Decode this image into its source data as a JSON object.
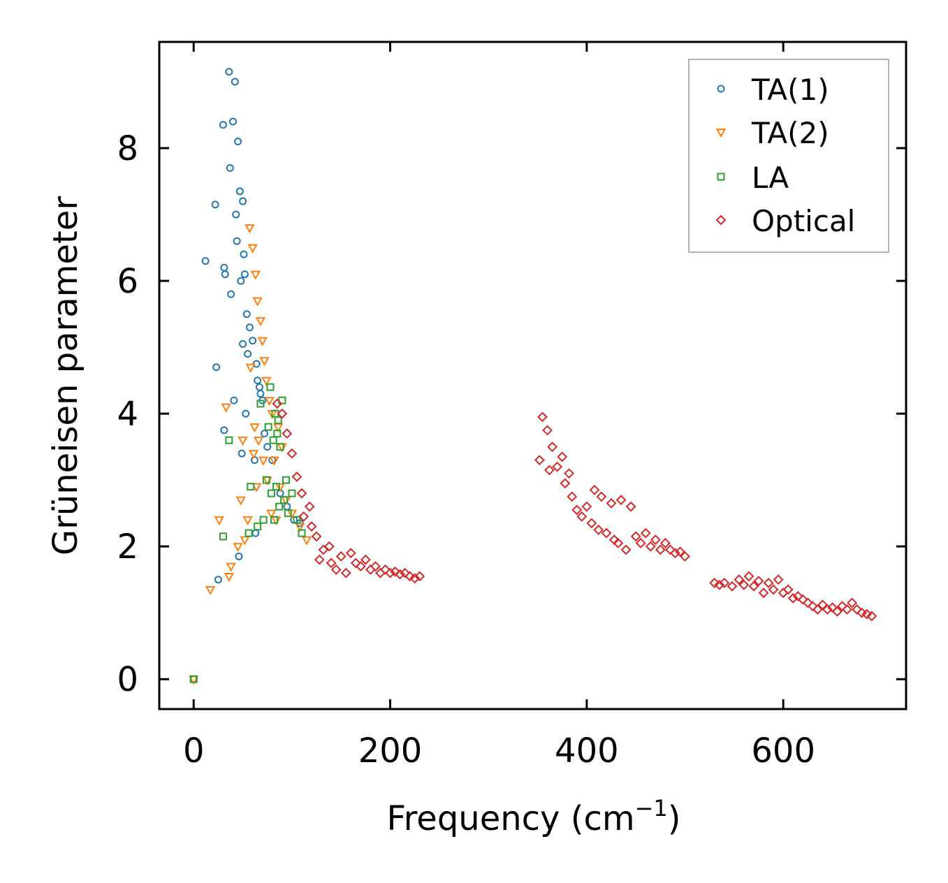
{
  "chart_data": {
    "type": "scatter",
    "title": "",
    "xlabel": "Frequency (cm",
    "xlabel_superscript": "−1",
    "xlabel_close": ")",
    "ylabel": "Grüneisen parameter",
    "xlim": [
      -35,
      725
    ],
    "ylim": [
      -0.45,
      9.6
    ],
    "xticks": [
      0,
      200,
      400,
      600
    ],
    "yticks": [
      0,
      2,
      4,
      6,
      8
    ],
    "xtick_labels": [
      "0",
      "200",
      "400",
      "600"
    ],
    "ytick_labels": [
      "0",
      "2",
      "4",
      "6",
      "8"
    ],
    "grid": false,
    "legend_position": "top-right",
    "series": [
      {
        "name": "TA(1)",
        "marker": "circle",
        "color": "#1f77b4",
        "points": [
          [
            0,
            0
          ],
          [
            12,
            6.3
          ],
          [
            22,
            7.15
          ],
          [
            23,
            4.7
          ],
          [
            25,
            1.5
          ],
          [
            30,
            8.35
          ],
          [
            31,
            6.2
          ],
          [
            31,
            3.75
          ],
          [
            32,
            6.1
          ],
          [
            36,
            9.15
          ],
          [
            37,
            7.7
          ],
          [
            38,
            5.8
          ],
          [
            40,
            8.4
          ],
          [
            41,
            4.2
          ],
          [
            42,
            9.0
          ],
          [
            43,
            7.0
          ],
          [
            44,
            6.6
          ],
          [
            45,
            8.1
          ],
          [
            46,
            1.85
          ],
          [
            47,
            7.35
          ],
          [
            48,
            6.0
          ],
          [
            49,
            3.4
          ],
          [
            50,
            5.05
          ],
          [
            50,
            7.2
          ],
          [
            51,
            6.4
          ],
          [
            52,
            6.1
          ],
          [
            53,
            4.0
          ],
          [
            54,
            5.5
          ],
          [
            55,
            4.9
          ],
          [
            57,
            5.3
          ],
          [
            60,
            5.1
          ],
          [
            62,
            3.3
          ],
          [
            63,
            2.2
          ],
          [
            64,
            4.75
          ],
          [
            65,
            4.5
          ],
          [
            67,
            4.4
          ],
          [
            68,
            4.3
          ],
          [
            70,
            4.2
          ],
          [
            72,
            3.7
          ],
          [
            75,
            3.5
          ],
          [
            80,
            3.3
          ],
          [
            88,
            2.8
          ],
          [
            95,
            2.6
          ],
          [
            102,
            2.4
          ],
          [
            108,
            2.35
          ]
        ]
      },
      {
        "name": "TA(2)",
        "marker": "triangle-down",
        "color": "#ff7f0e",
        "points": [
          [
            0,
            0
          ],
          [
            17,
            1.35
          ],
          [
            26,
            2.4
          ],
          [
            33,
            4.1
          ],
          [
            36,
            1.55
          ],
          [
            38,
            1.7
          ],
          [
            45,
            2.0
          ],
          [
            48,
            2.7
          ],
          [
            50,
            3.6
          ],
          [
            52,
            2.1
          ],
          [
            55,
            2.4
          ],
          [
            57,
            6.8
          ],
          [
            58,
            4.7
          ],
          [
            60,
            6.5
          ],
          [
            61,
            3.4
          ],
          [
            62,
            3.8
          ],
          [
            63,
            6.1
          ],
          [
            64,
            2.9
          ],
          [
            65,
            5.7
          ],
          [
            66,
            3.6
          ],
          [
            68,
            5.4
          ],
          [
            70,
            5.1
          ],
          [
            71,
            3.3
          ],
          [
            72,
            4.8
          ],
          [
            74,
            4.5
          ],
          [
            75,
            3.0
          ],
          [
            77,
            4.2
          ],
          [
            79,
            2.5
          ],
          [
            80,
            4.0
          ],
          [
            82,
            3.3
          ],
          [
            84,
            2.4
          ],
          [
            86,
            3.8
          ],
          [
            88,
            2.9
          ],
          [
            90,
            3.5
          ],
          [
            94,
            2.7
          ],
          [
            100,
            2.5
          ],
          [
            108,
            2.3
          ],
          [
            115,
            2.1
          ]
        ]
      },
      {
        "name": "LA",
        "marker": "square",
        "color": "#2ca02c",
        "points": [
          [
            0,
            0
          ],
          [
            30,
            2.15
          ],
          [
            36,
            3.6
          ],
          [
            56,
            2.2
          ],
          [
            58,
            2.9
          ],
          [
            65,
            2.3
          ],
          [
            68,
            4.15
          ],
          [
            71,
            2.4
          ],
          [
            74,
            3.0
          ],
          [
            76,
            3.8
          ],
          [
            78,
            4.4
          ],
          [
            79,
            2.8
          ],
          [
            81,
            3.6
          ],
          [
            82,
            2.4
          ],
          [
            83,
            4.0
          ],
          [
            84,
            2.9
          ],
          [
            85,
            3.7
          ],
          [
            86,
            3.9
          ],
          [
            87,
            2.6
          ],
          [
            88,
            3.5
          ],
          [
            90,
            4.2
          ],
          [
            92,
            2.7
          ],
          [
            94,
            3.0
          ],
          [
            96,
            2.5
          ],
          [
            100,
            2.8
          ],
          [
            105,
            2.4
          ],
          [
            110,
            2.2
          ]
        ]
      },
      {
        "name": "Optical",
        "marker": "diamond",
        "color": "#d62728",
        "points": [
          [
            85,
            4.15
          ],
          [
            90,
            4.0
          ],
          [
            95,
            3.7
          ],
          [
            100,
            3.4
          ],
          [
            105,
            3.05
          ],
          [
            110,
            2.8
          ],
          [
            112,
            2.45
          ],
          [
            118,
            2.6
          ],
          [
            120,
            2.3
          ],
          [
            125,
            2.15
          ],
          [
            128,
            1.8
          ],
          [
            132,
            1.95
          ],
          [
            138,
            2.0
          ],
          [
            140,
            1.75
          ],
          [
            145,
            1.65
          ],
          [
            150,
            1.85
          ],
          [
            155,
            1.6
          ],
          [
            160,
            1.9
          ],
          [
            165,
            1.75
          ],
          [
            170,
            1.7
          ],
          [
            175,
            1.8
          ],
          [
            180,
            1.65
          ],
          [
            185,
            1.7
          ],
          [
            190,
            1.6
          ],
          [
            195,
            1.65
          ],
          [
            200,
            1.6
          ],
          [
            205,
            1.62
          ],
          [
            210,
            1.58
          ],
          [
            215,
            1.6
          ],
          [
            220,
            1.55
          ],
          [
            225,
            1.52
          ],
          [
            230,
            1.55
          ],
          [
            352,
            3.3
          ],
          [
            355,
            3.95
          ],
          [
            360,
            3.75
          ],
          [
            362,
            3.15
          ],
          [
            365,
            3.5
          ],
          [
            370,
            3.2
          ],
          [
            375,
            3.35
          ],
          [
            378,
            2.95
          ],
          [
            382,
            3.1
          ],
          [
            385,
            2.75
          ],
          [
            390,
            2.55
          ],
          [
            395,
            2.45
          ],
          [
            400,
            2.6
          ],
          [
            405,
            2.35
          ],
          [
            408,
            2.85
          ],
          [
            412,
            2.25
          ],
          [
            415,
            2.75
          ],
          [
            420,
            2.2
          ],
          [
            425,
            2.65
          ],
          [
            428,
            2.1
          ],
          [
            432,
            2.05
          ],
          [
            435,
            2.7
          ],
          [
            440,
            1.95
          ],
          [
            445,
            2.6
          ],
          [
            450,
            2.15
          ],
          [
            455,
            2.05
          ],
          [
            460,
            2.2
          ],
          [
            465,
            2.0
          ],
          [
            470,
            2.1
          ],
          [
            475,
            1.95
          ],
          [
            480,
            2.05
          ],
          [
            485,
            1.95
          ],
          [
            490,
            1.9
          ],
          [
            495,
            1.92
          ],
          [
            500,
            1.85
          ],
          [
            530,
            1.45
          ],
          [
            535,
            1.42
          ],
          [
            540,
            1.45
          ],
          [
            548,
            1.4
          ],
          [
            555,
            1.5
          ],
          [
            560,
            1.42
          ],
          [
            565,
            1.55
          ],
          [
            570,
            1.4
          ],
          [
            575,
            1.48
          ],
          [
            580,
            1.3
          ],
          [
            585,
            1.45
          ],
          [
            590,
            1.35
          ],
          [
            595,
            1.5
          ],
          [
            600,
            1.3
          ],
          [
            605,
            1.35
          ],
          [
            610,
            1.22
          ],
          [
            615,
            1.25
          ],
          [
            620,
            1.2
          ],
          [
            625,
            1.15
          ],
          [
            630,
            1.1
          ],
          [
            635,
            1.05
          ],
          [
            640,
            1.12
          ],
          [
            645,
            1.05
          ],
          [
            650,
            1.08
          ],
          [
            655,
            1.02
          ],
          [
            660,
            1.1
          ],
          [
            665,
            1.05
          ],
          [
            670,
            1.15
          ],
          [
            675,
            1.05
          ],
          [
            680,
            1.0
          ],
          [
            685,
            0.98
          ],
          [
            690,
            0.95
          ]
        ]
      }
    ]
  }
}
